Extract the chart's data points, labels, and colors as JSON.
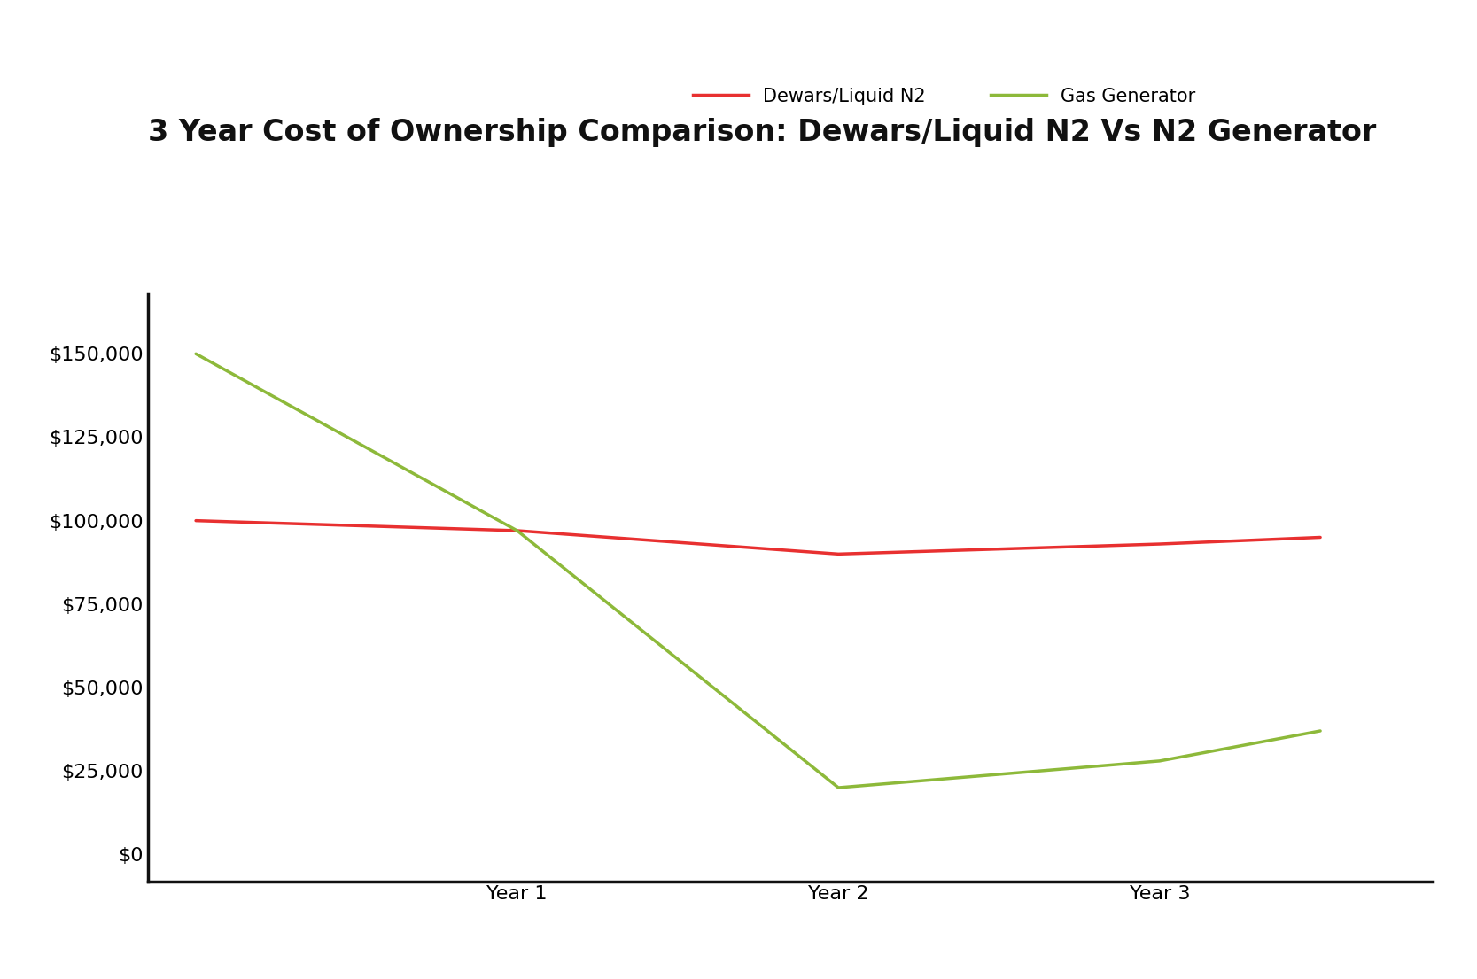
{
  "title": "3 Year Cost of Ownership Comparison: Dewars/Liquid N2 Vs N2 Generator",
  "title_fontsize": 24,
  "title_fontweight": "bold",
  "background_color": "#ffffff",
  "series": [
    {
      "label": "Dewars/Liquid N2",
      "color": "#e83030",
      "linewidth": 2.5,
      "x": [
        0,
        1,
        2,
        3,
        3.5
      ],
      "y": [
        100000,
        97000,
        90000,
        93000,
        95000
      ]
    },
    {
      "label": "Gas Generator",
      "color": "#8db93a",
      "linewidth": 2.5,
      "x": [
        0,
        1,
        2,
        3,
        3.5
      ],
      "y": [
        150000,
        97000,
        20000,
        28000,
        37000
      ]
    }
  ],
  "yticks": [
    0,
    25000,
    50000,
    75000,
    100000,
    125000,
    150000
  ],
  "ylim": [
    -8000,
    168000
  ],
  "xlim": [
    -0.15,
    3.85
  ],
  "xtick_positions": [
    1,
    2,
    3
  ],
  "xtick_labels": [
    "Year 1",
    "Year 2",
    "Year 3"
  ],
  "legend_fontsize": 15,
  "tick_fontsize": 16,
  "spine_color": "#111111"
}
